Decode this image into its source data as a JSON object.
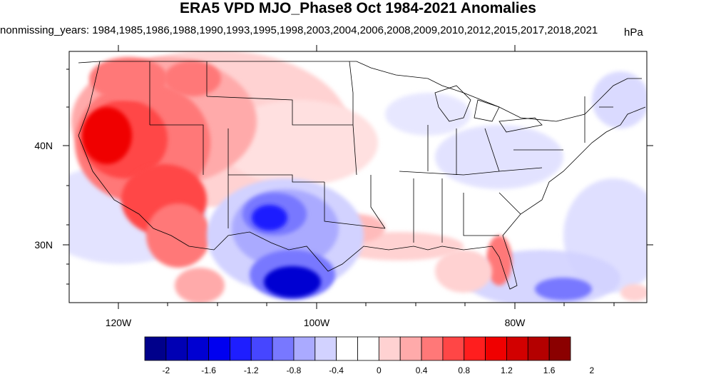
{
  "header": {
    "title": "ERA5 VPD MJO_Phase8 Oct 1984-2021 Anomalies",
    "subtitle": "nonmissing_years: 1984,1985,1986,1988,1990,1993,1995,1998,2003,2004,2006,2008,2009,2010,2012,2015,2017,2018,2021",
    "units": "hPa"
  },
  "axes": {
    "x_ticks": [
      "120W",
      "100W",
      "80W"
    ],
    "y_ticks": [
      "40N",
      "30N"
    ]
  },
  "colorbar": {
    "labels": [
      "-2",
      "-1.6",
      "-1.2",
      "-0.8",
      "-0.4",
      "0",
      "0.4",
      "0.8",
      "1.2",
      "1.6",
      "2"
    ],
    "colors": [
      "#00008b",
      "#0000b4",
      "#0000d2",
      "#0000f0",
      "#1e1eff",
      "#4646ff",
      "#7878ff",
      "#aaaaff",
      "#d2d2ff",
      "#ffffff",
      "#ffffff",
      "#ffd2d2",
      "#ffaaaa",
      "#ff7878",
      "#ff4646",
      "#ff1e1e",
      "#f00000",
      "#d20000",
      "#b40000",
      "#8b0000"
    ]
  },
  "map": {
    "region": "Contiguous United States",
    "colors": {
      "strong_positive": "#e00000",
      "positive": "#ff7878",
      "weak_positive": "#ffd2d2",
      "strong_negative": "#0000d2",
      "negative": "#7878ff",
      "weak_negative": "#d2d2ff"
    }
  }
}
